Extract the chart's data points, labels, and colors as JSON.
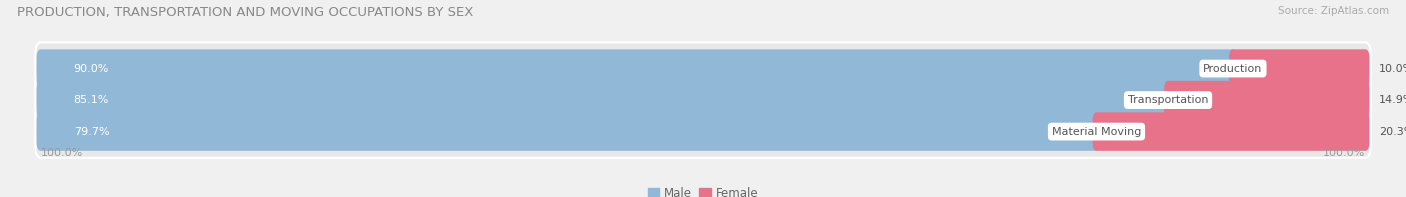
{
  "title": "PRODUCTION, TRANSPORTATION AND MOVING OCCUPATIONS BY SEX",
  "source": "Source: ZipAtlas.com",
  "categories": [
    "Production",
    "Transportation",
    "Material Moving"
  ],
  "male_pct": [
    90.0,
    85.1,
    79.7
  ],
  "female_pct": [
    10.0,
    14.9,
    20.3
  ],
  "male_color": "#92b8d8",
  "female_color": "#e8728a",
  "male_label_color": "#ffffff",
  "female_label_color": "#555555",
  "category_label_color": "#555555",
  "bar_height": 0.62,
  "background_color": "#f0f0f0",
  "bar_bg_color": "#dcdcdc",
  "row_bg_color": "#e8e8e8",
  "axis_label_left": "100.0%",
  "axis_label_right": "100.0%",
  "legend_male": "Male",
  "legend_female": "Female",
  "title_color": "#888888",
  "source_color": "#aaaaaa",
  "axis_tick_color": "#999999"
}
